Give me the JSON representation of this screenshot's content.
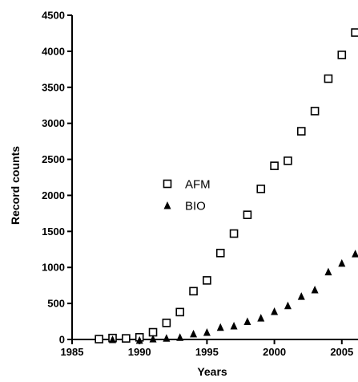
{
  "chart_data": {
    "type": "scatter",
    "title": "",
    "xlabel": "Years",
    "ylabel": "Record counts",
    "xlim": [
      1985,
      2006
    ],
    "ylim": [
      0,
      4500
    ],
    "xticks": [
      1985,
      1990,
      1995,
      2000,
      2005
    ],
    "xtick_labels": [
      "1985",
      "1990",
      "1995",
      "2000",
      "2005"
    ],
    "yticks": [
      0,
      500,
      1000,
      1500,
      2000,
      2500,
      3000,
      3500,
      4000,
      4500
    ],
    "ytick_labels": [
      "0",
      "500",
      "1000",
      "1500",
      "2000",
      "2500",
      "3000",
      "3500",
      "4000",
      "4500"
    ],
    "grid": false,
    "legend_position": "center-left",
    "series": [
      {
        "name": "AFM",
        "marker": "open-square",
        "color": "#000000",
        "x": [
          1987,
          1988,
          1989,
          1990,
          1991,
          1992,
          1993,
          1994,
          1995,
          1996,
          1997,
          1998,
          1999,
          2000,
          2001,
          2002,
          2003,
          2004,
          2005,
          2006
        ],
        "y": [
          5,
          20,
          15,
          30,
          100,
          230,
          380,
          670,
          820,
          1200,
          1470,
          1730,
          2090,
          2410,
          2480,
          2890,
          3170,
          3620,
          3950,
          4260
        ]
      },
      {
        "name": "BIO",
        "marker": "filled-triangle",
        "color": "#000000",
        "x": [
          1988,
          1990,
          1991,
          1992,
          1993,
          1994,
          1995,
          1996,
          1997,
          1998,
          1999,
          2000,
          2001,
          2002,
          2003,
          2004,
          2005,
          2006
        ],
        "y": [
          0,
          -10,
          10,
          20,
          30,
          80,
          100,
          170,
          190,
          250,
          300,
          390,
          470,
          600,
          690,
          940,
          1060,
          1190
        ]
      }
    ]
  }
}
